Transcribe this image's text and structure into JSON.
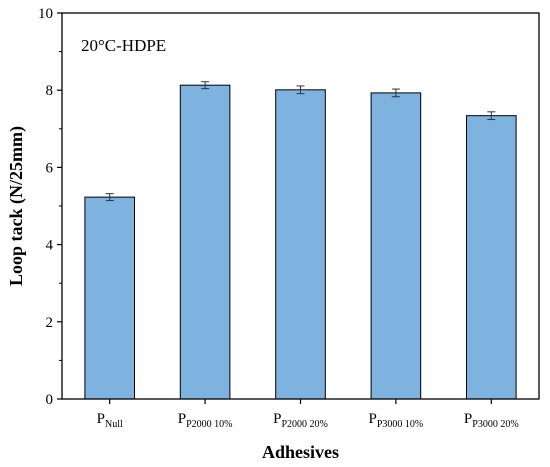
{
  "chart_data": {
    "type": "bar",
    "annotation": "20°C-HDPE",
    "xlabel": "Adhesives",
    "ylabel": "Loop tack (N/25mm)",
    "ylim": [
      0,
      10
    ],
    "yticks": [
      0,
      2,
      4,
      6,
      8,
      10
    ],
    "grid": false,
    "categories": [
      {
        "main": "P",
        "sub": "Null"
      },
      {
        "main": "P",
        "sub": "P2000 10%"
      },
      {
        "main": "P",
        "sub": "P2000 20%"
      },
      {
        "main": "P",
        "sub": "P3000 10%"
      },
      {
        "main": "P",
        "sub": "P3000 20%"
      }
    ],
    "values": [
      5.23,
      8.13,
      8.01,
      7.93,
      7.34
    ],
    "errors": [
      0.09,
      0.09,
      0.1,
      0.1,
      0.1
    ],
    "bar_color": "#7fb3df",
    "bar_edge_color": "#000000"
  }
}
